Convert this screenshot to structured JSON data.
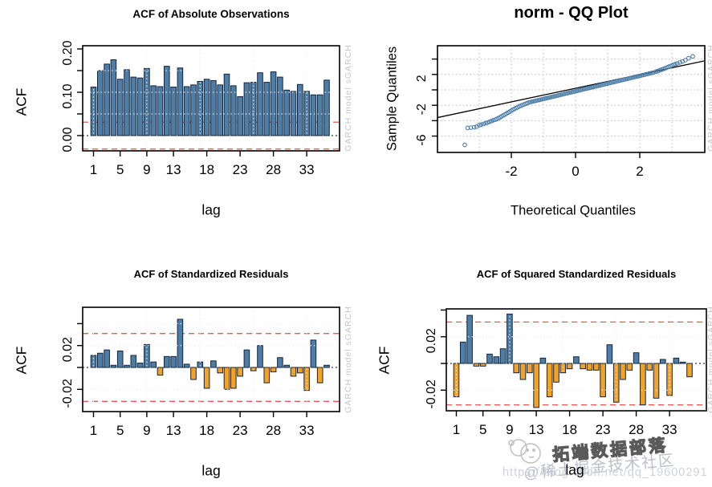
{
  "page": {
    "background": "#ffffff"
  },
  "colors": {
    "bar_positive": "#4d7ea8",
    "bar_negative": "#f2a227",
    "bar_border": "#16243a",
    "conf_line_red": "#e8574a",
    "grid_gray": "#bcbcbc",
    "qq_point_blue": "#4d7ea8",
    "watermark_gray": "#c6c6c6"
  },
  "watermarks": {
    "side_text": "GARCH model    sGARCH",
    "badge": {
      "primary_text": "拓端数据部落",
      "secondary_text": "@稀土掘金技术社区",
      "url_text": "https://blog.csdn.net/qq_19600291"
    }
  },
  "chart_data": [
    {
      "type": "bar",
      "title": "ACF of Absolute Observations",
      "xlabel": "lag",
      "ylabel": "ACF",
      "lags": {
        "from": 1,
        "to": 36
      },
      "values": [
        0.112,
        0.15,
        0.165,
        0.175,
        0.13,
        0.152,
        0.135,
        0.133,
        0.155,
        0.115,
        0.113,
        0.16,
        0.112,
        0.156,
        0.113,
        0.117,
        0.125,
        0.13,
        0.127,
        0.117,
        0.142,
        0.115,
        0.09,
        0.122,
        0.123,
        0.145,
        0.123,
        0.147,
        0.135,
        0.105,
        0.102,
        0.118,
        0.102,
        0.094,
        0.094,
        0.128
      ],
      "xticks": [
        1,
        5,
        9,
        13,
        18,
        23,
        28,
        33
      ],
      "yticks": [
        0,
        0.05,
        0.1,
        0.15,
        0.2
      ],
      "ytick_labels": [
        "0.00",
        "0.10",
        "0.20"
      ],
      "ytick_label_values": [
        0,
        0.1,
        0.2
      ],
      "gridlines_y": [
        0.05,
        0.1,
        0.15,
        0.2
      ],
      "gridlines_x_lags": [
        1,
        9,
        17,
        25,
        33
      ],
      "conf_bound": 0.031,
      "ylim": [
        -0.035,
        0.207
      ],
      "grid": true
    },
    {
      "type": "scatter",
      "title": "norm - QQ Plot",
      "xlabel": "Theoretical Quantiles",
      "ylabel": "Sample Quantiles",
      "xticks": [
        -2,
        0,
        2
      ],
      "yticks": [
        4,
        2,
        0,
        -2,
        -4,
        -6
      ],
      "ytick_labels": [
        "2",
        "-2",
        "-6"
      ],
      "ytick_label_values": [
        2,
        -2,
        -6
      ],
      "gridlines_x": [
        -3,
        -2,
        -1,
        0,
        1,
        2,
        3
      ],
      "gridlines_y": [
        4,
        2,
        0,
        -2,
        -4,
        -6
      ],
      "xlim": [
        -4.3,
        4.0
      ],
      "ylim": [
        -8.1,
        5.7
      ],
      "ref_line": {
        "x1": -4.3,
        "y1": -3.6,
        "x2": 4.0,
        "y2": 3.75
      },
      "dense_band": {
        "x_start": -1.45,
        "x_end": 2.45,
        "step": 0.045,
        "slope": 1.0,
        "intercept": -0.18
      },
      "points": [
        [
          -1.5,
          -1.72
        ],
        [
          -1.55,
          -1.8
        ],
        [
          -1.6,
          -1.88
        ],
        [
          -1.65,
          -1.97
        ],
        [
          -1.7,
          -2.06
        ],
        [
          -1.75,
          -2.15
        ],
        [
          -1.8,
          -2.25
        ],
        [
          -1.85,
          -2.36
        ],
        [
          -1.9,
          -2.47
        ],
        [
          -1.95,
          -2.58
        ],
        [
          -2.0,
          -2.7
        ],
        [
          -2.05,
          -2.82
        ],
        [
          -2.1,
          -2.95
        ],
        [
          -2.15,
          -3.08
        ],
        [
          -2.2,
          -3.2
        ],
        [
          -2.25,
          -3.32
        ],
        [
          -2.3,
          -3.44
        ],
        [
          -2.35,
          -3.56
        ],
        [
          -2.4,
          -3.67
        ],
        [
          -2.45,
          -3.77
        ],
        [
          -2.5,
          -3.86
        ],
        [
          -2.56,
          -3.95
        ],
        [
          -2.62,
          -4.05
        ],
        [
          -2.68,
          -4.15
        ],
        [
          -2.74,
          -4.25
        ],
        [
          -2.8,
          -4.33
        ],
        [
          -2.87,
          -4.42
        ],
        [
          -2.94,
          -4.52
        ],
        [
          -3.0,
          -4.6
        ],
        [
          -3.08,
          -4.78
        ],
        [
          -3.16,
          -4.85
        ],
        [
          -3.26,
          -4.9
        ],
        [
          -3.36,
          -4.95
        ],
        [
          -3.45,
          -7.15
        ],
        [
          2.5,
          2.36
        ],
        [
          2.55,
          2.42
        ],
        [
          2.6,
          2.5
        ],
        [
          2.65,
          2.58
        ],
        [
          2.7,
          2.66
        ],
        [
          2.75,
          2.74
        ],
        [
          2.8,
          2.82
        ],
        [
          2.85,
          2.9
        ],
        [
          2.9,
          3.0
        ],
        [
          2.95,
          3.08
        ],
        [
          3.0,
          3.16
        ],
        [
          3.05,
          3.25
        ],
        [
          3.1,
          3.33
        ],
        [
          3.17,
          3.43
        ],
        [
          3.25,
          3.55
        ],
        [
          3.33,
          3.68
        ],
        [
          3.42,
          3.85
        ],
        [
          3.52,
          4.1
        ],
        [
          3.65,
          4.35
        ]
      ]
    },
    {
      "type": "bar",
      "title": "ACF of Standardized Residuals",
      "xlabel": "lag",
      "ylabel": "ACF",
      "lags": {
        "from": 1,
        "to": 36
      },
      "values": [
        0.011,
        0.013,
        0.016,
        0.002,
        0.015,
        0.002,
        0.011,
        0.004,
        0.021,
        0.005,
        -0.007,
        0.01,
        0.01,
        0.044,
        0.003,
        -0.011,
        0.005,
        -0.019,
        0.006,
        -0.005,
        -0.02,
        -0.019,
        -0.008,
        0.016,
        -0.003,
        0.02,
        -0.014,
        -0.004,
        0.009,
        0.002,
        -0.008,
        -0.005,
        -0.021,
        0.025,
        -0.014,
        0.002
      ],
      "xticks": [
        1,
        5,
        9,
        13,
        18,
        23,
        28,
        33
      ],
      "yticks": [
        0.04,
        0.02,
        0,
        -0.02
      ],
      "ytick_labels": [
        "0.02",
        "-0.02"
      ],
      "ytick_label_values": [
        0.02,
        -0.02
      ],
      "gridlines_y": [
        0.04,
        0.02,
        -0.02
      ],
      "gridlines_x_lags": [
        1,
        9,
        17,
        25,
        33
      ],
      "conf_bound": 0.031,
      "ylim": [
        -0.04,
        0.055
      ],
      "grid": true
    },
    {
      "type": "bar",
      "title": "ACF of Squared Standardized Residuals",
      "xlabel": "lag",
      "ylabel": "ACF",
      "lags": {
        "from": 1,
        "to": 36
      },
      "values": [
        -0.025,
        0.016,
        0.036,
        -0.002,
        -0.002,
        0.007,
        0.005,
        0.011,
        0.037,
        -0.007,
        -0.012,
        -0.007,
        -0.033,
        0.004,
        -0.025,
        -0.014,
        -0.007,
        -0.004,
        0.005,
        -0.004,
        -0.005,
        -0.005,
        -0.025,
        0.014,
        -0.029,
        -0.012,
        -0.005,
        0.008,
        -0.031,
        -0.005,
        -0.026,
        0.003,
        -0.024,
        0.004,
        0.001,
        -0.01
      ],
      "xticks": [
        1,
        5,
        9,
        13,
        18,
        23,
        28,
        33
      ],
      "yticks": [
        0.04,
        0.02,
        0,
        -0.02
      ],
      "ytick_labels": [
        "0.02",
        "-0.02"
      ],
      "ytick_label_values": [
        0.02,
        -0.02
      ],
      "gridlines_y": [
        0.04,
        0.02,
        -0.02
      ],
      "gridlines_x_lags": [
        1,
        9,
        17,
        25,
        33
      ],
      "conf_bound": 0.031,
      "ylim": [
        -0.035,
        0.041
      ],
      "grid": true
    }
  ]
}
